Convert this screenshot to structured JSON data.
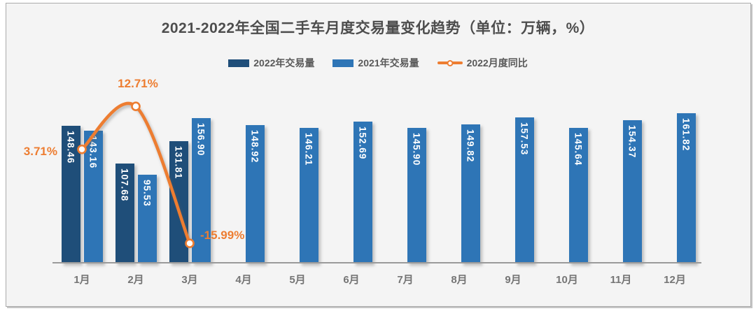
{
  "title": "2021-2022年全国二手车月度交易量变化趋势（单位：万辆，%）",
  "legend": [
    {
      "label": "2022年交易量",
      "swatch": "bar",
      "color": "#1F4E79"
    },
    {
      "label": "2021年交易量",
      "swatch": "bar",
      "color": "#2E75B6"
    },
    {
      "label": "2022月度同比",
      "swatch": "line-marker",
      "color": "#ED7D31"
    }
  ],
  "colors": {
    "bar_2022": "#1F4E79",
    "bar_2021": "#2E75B6",
    "line_yoy": "#ED7D31",
    "title_text": "#4d4d4d",
    "axis_label_text": "#757575",
    "legend_text": "#595959",
    "bar_value_text": "#ffffff",
    "panel_background": "#f4f4f4",
    "axis_line": "#9a9a9a"
  },
  "chart_data": {
    "type": "bar",
    "combo_line": true,
    "title": "2021-2022年全国二手车月度交易量变化趋势（单位：万辆，%）",
    "categories": [
      "1月",
      "2月",
      "3月",
      "4月",
      "5月",
      "6月",
      "7月",
      "8月",
      "9月",
      "10月",
      "11月",
      "12月"
    ],
    "series": [
      {
        "name": "2022年交易量",
        "kind": "bar",
        "color": "#1F4E79",
        "values": [
          148.46,
          107.68,
          131.81,
          null,
          null,
          null,
          null,
          null,
          null,
          null,
          null,
          null
        ]
      },
      {
        "name": "2021年交易量",
        "kind": "bar",
        "color": "#2E75B6",
        "values": [
          143.16,
          95.53,
          156.9,
          148.92,
          146.21,
          152.69,
          145.9,
          149.82,
          157.53,
          145.64,
          154.37,
          161.82
        ]
      },
      {
        "name": "2022月度同比",
        "kind": "line",
        "unit": "%",
        "color": "#ED7D31",
        "values": [
          3.71,
          12.71,
          -15.99,
          null,
          null,
          null,
          null,
          null,
          null,
          null,
          null,
          null
        ]
      }
    ],
    "annotations": [
      {
        "text": "3.71%",
        "month_index": 0,
        "placement": "left"
      },
      {
        "text": "12.71%",
        "month_index": 1,
        "placement": "above"
      },
      {
        "text": "-15.99%",
        "month_index": 2,
        "placement": "right"
      }
    ],
    "value_labels_shown": true,
    "xlabel": "",
    "ylabel": "",
    "y_axis_visible": false,
    "grid": false,
    "legend_position": "top"
  }
}
